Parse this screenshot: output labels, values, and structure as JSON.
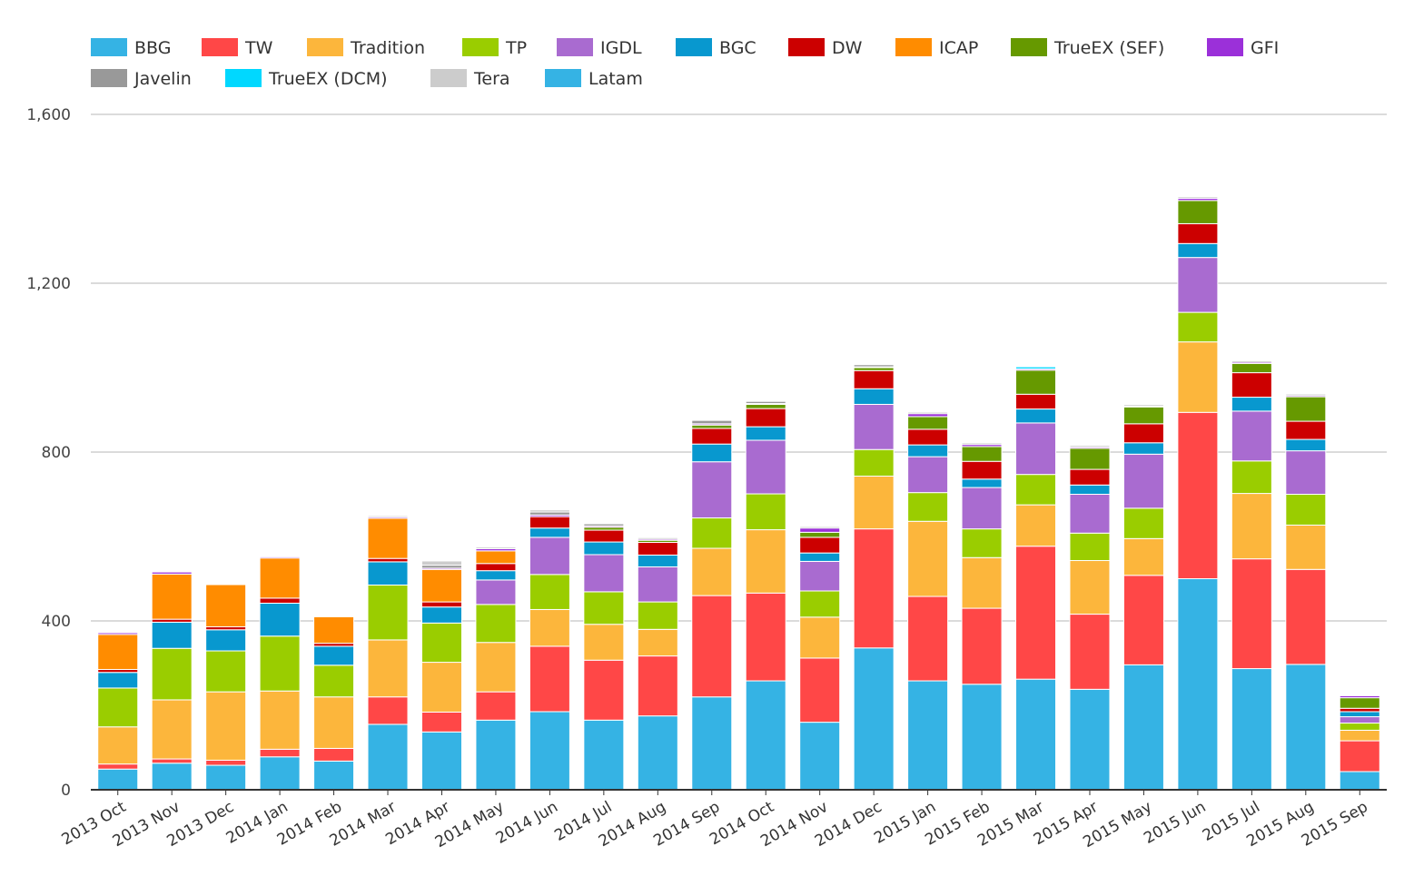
{
  "chart_data": {
    "type": "bar",
    "stacked": true,
    "ylim": [
      0,
      1600
    ],
    "yticks": [
      0,
      400,
      800,
      1200,
      1600
    ],
    "ytick_labels": [
      "0",
      "400",
      "800",
      "1,200",
      "1,600"
    ],
    "grid": true,
    "legend_position": "top",
    "categories": [
      "2013 Oct",
      "2013 Nov",
      "2013 Dec",
      "2014 Jan",
      "2014 Feb",
      "2014 Mar",
      "2014 Apr",
      "2014 May",
      "2014 Jun",
      "2014 Jul",
      "2014 Aug",
      "2014 Sep",
      "2014 Oct",
      "2014 Nov",
      "2014 Dec",
      "2015 Jan",
      "2015 Feb",
      "2015 Mar",
      "2015 Apr",
      "2015 May",
      "2015 Jun",
      "2015 Jul",
      "2015 Aug",
      "2015 Sep"
    ],
    "series": [
      {
        "name": "BBG",
        "color": "#35b3e4",
        "values": [
          49,
          63,
          58,
          78,
          68,
          155,
          137,
          165,
          185,
          165,
          175,
          220,
          258,
          160,
          336,
          258,
          250,
          262,
          238,
          296,
          500,
          287,
          297,
          43
        ]
      },
      {
        "name": "TW",
        "color": "#ff4747",
        "values": [
          12,
          10,
          12,
          18,
          30,
          65,
          47,
          67,
          155,
          142,
          142,
          240,
          208,
          152,
          282,
          200,
          180,
          315,
          178,
          212,
          394,
          260,
          225,
          73
        ]
      },
      {
        "name": "Tradition",
        "color": "#fcb63c",
        "values": [
          88,
          140,
          162,
          138,
          122,
          135,
          118,
          117,
          87,
          85,
          63,
          112,
          150,
          97,
          125,
          178,
          120,
          98,
          127,
          87,
          167,
          155,
          105,
          25
        ]
      },
      {
        "name": "TP",
        "color": "#9acd00",
        "values": [
          92,
          122,
          97,
          130,
          75,
          130,
          93,
          90,
          83,
          77,
          65,
          72,
          85,
          62,
          63,
          68,
          68,
          72,
          65,
          72,
          70,
          77,
          73,
          17
        ]
      },
      {
        "name": "IGDL",
        "color": "#a96bd0",
        "values": [
          0,
          0,
          0,
          0,
          0,
          0,
          0,
          58,
          88,
          88,
          83,
          133,
          127,
          70,
          107,
          85,
          98,
          122,
          92,
          128,
          130,
          118,
          103,
          15
        ]
      },
      {
        "name": "BGC",
        "color": "#0898cf",
        "values": [
          37,
          62,
          50,
          78,
          45,
          55,
          38,
          22,
          22,
          30,
          28,
          42,
          32,
          20,
          37,
          28,
          20,
          33,
          22,
          27,
          33,
          33,
          27,
          12
        ]
      },
      {
        "name": "DW",
        "color": "#cc0000",
        "values": [
          7,
          7,
          7,
          12,
          7,
          8,
          12,
          17,
          27,
          28,
          30,
          37,
          43,
          37,
          43,
          37,
          42,
          35,
          37,
          45,
          47,
          58,
          43,
          8
        ]
      },
      {
        "name": "ICAP",
        "color": "#ff8c00",
        "values": [
          83,
          107,
          100,
          95,
          63,
          95,
          77,
          30,
          0,
          0,
          0,
          0,
          0,
          0,
          0,
          0,
          0,
          0,
          0,
          0,
          0,
          0,
          0,
          0
        ]
      },
      {
        "name": "TrueEX (SEF)",
        "color": "#669900",
        "values": [
          0,
          0,
          0,
          0,
          0,
          0,
          0,
          0,
          0,
          7,
          5,
          8,
          10,
          12,
          7,
          30,
          35,
          57,
          50,
          40,
          55,
          22,
          58,
          25
        ]
      },
      {
        "name": "GFI",
        "color": "#9b30d9",
        "values": [
          4,
          5,
          2,
          3,
          2,
          3,
          3,
          5,
          4,
          3,
          3,
          3,
          2,
          10,
          2,
          7,
          5,
          3,
          3,
          2,
          5,
          3,
          3,
          5
        ]
      },
      {
        "name": "Javelin",
        "color": "#999999",
        "values": [
          2,
          2,
          2,
          2,
          2,
          3,
          7,
          3,
          7,
          5,
          3,
          8,
          5,
          3,
          5,
          3,
          3,
          0,
          3,
          3,
          3,
          3,
          3,
          2
        ]
      },
      {
        "name": "TrueEX (DCM)",
        "color": "#00d8ff",
        "values": [
          0,
          0,
          0,
          0,
          0,
          0,
          0,
          0,
          0,
          0,
          0,
          0,
          0,
          0,
          0,
          0,
          0,
          5,
          0,
          0,
          0,
          0,
          0,
          0
        ]
      },
      {
        "name": "Tera",
        "color": "#cccccc",
        "values": [
          0,
          0,
          0,
          0,
          0,
          2,
          10,
          0,
          5,
          0,
          0,
          0,
          0,
          0,
          0,
          0,
          0,
          0,
          0,
          0,
          0,
          0,
          0,
          0
        ]
      },
      {
        "name": "Latam",
        "color": "#35b3e4",
        "values": [
          0,
          0,
          0,
          0,
          0,
          0,
          0,
          0,
          0,
          0,
          0,
          0,
          0,
          0,
          0,
          0,
          0,
          0,
          0,
          0,
          0,
          0,
          0,
          0
        ]
      }
    ]
  }
}
